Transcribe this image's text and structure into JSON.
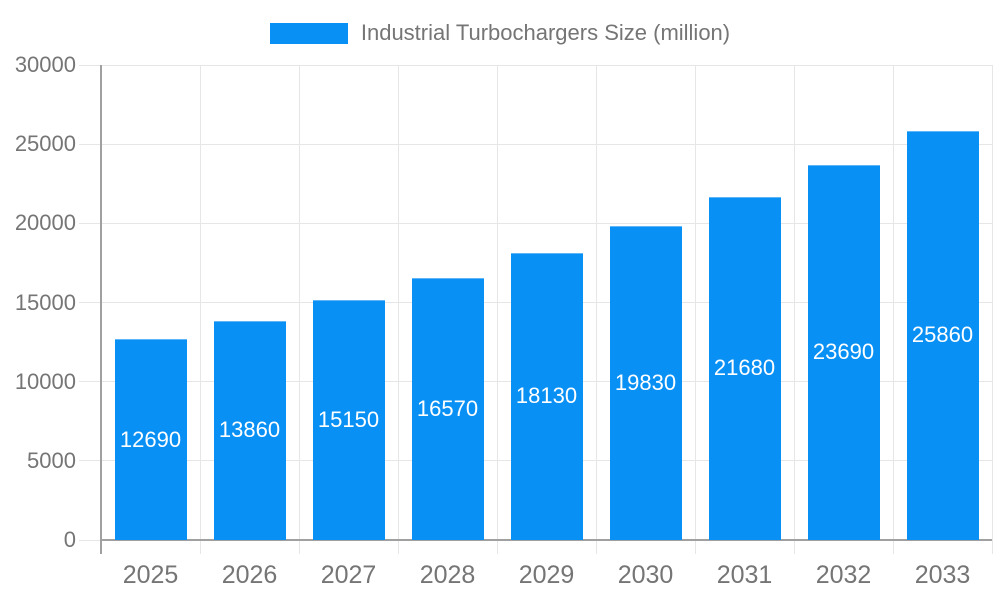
{
  "chart": {
    "legend_label": "Industrial Turbochargers Size (million)",
    "colors": {
      "bar": "#0990f5",
      "grid": "#e6e6e6",
      "axis": "#a0a0a0",
      "tick_text": "#757575",
      "bar_label_text": "#ffffff",
      "background": "#ffffff"
    }
  },
  "chart_data": {
    "type": "bar",
    "title": "Industrial Turbochargers Size (million)",
    "series_name": "Industrial Turbochargers Size (million)",
    "categories": [
      "2025",
      "2026",
      "2027",
      "2028",
      "2029",
      "2030",
      "2031",
      "2032",
      "2033"
    ],
    "values": [
      12690,
      13860,
      15150,
      16570,
      18130,
      19830,
      21680,
      23690,
      25860
    ],
    "xlabel": "",
    "ylabel": "",
    "ylim": [
      0,
      30000
    ],
    "yticks": [
      0,
      5000,
      10000,
      15000,
      20000,
      25000,
      30000
    ],
    "grid": true,
    "legend_position": "top-center",
    "value_labels": "inside-center"
  }
}
